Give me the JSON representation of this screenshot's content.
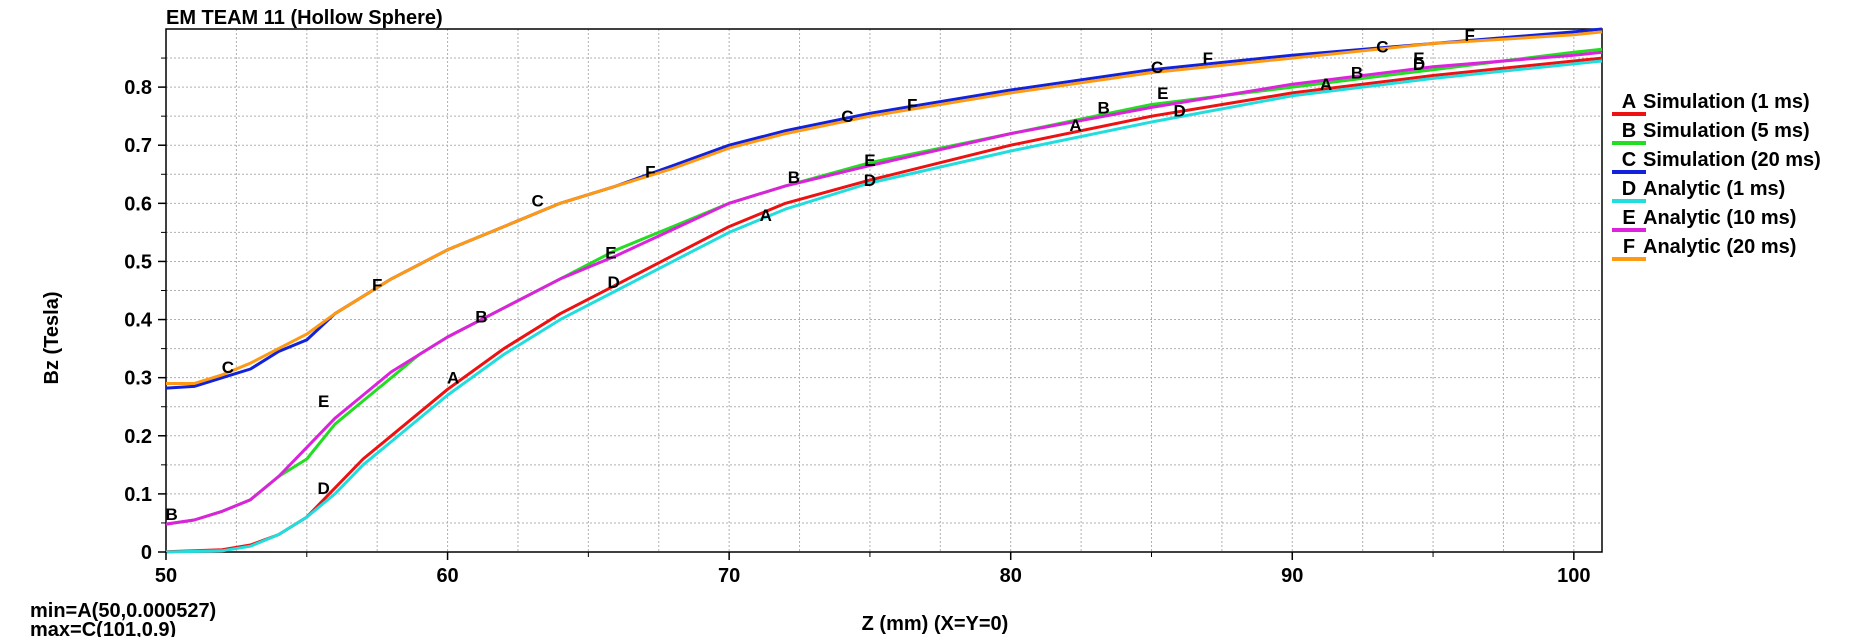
{
  "chart_data": {
    "type": "line",
    "title": "EM TEAM 11 (Hollow Sphere)",
    "xlabel": "Z (mm) (X=Y=0)",
    "ylabel": "Bz (Tesla)",
    "xlim": [
      50,
      101
    ],
    "ylim": [
      0,
      0.9
    ],
    "xticks": [
      50,
      60,
      70,
      80,
      90,
      100
    ],
    "yticks": [
      0,
      0.1,
      0.2,
      0.3,
      0.4,
      0.5,
      0.6,
      0.7,
      0.8
    ],
    "grid": true,
    "legend_position": "right",
    "min_label": "min=A(50,0.000527)",
    "max_label": "max=C(101,0.9)",
    "series": [
      {
        "name": "Simulation (1 ms)",
        "marker": "A",
        "color": "#ee1111",
        "x": [
          50,
          52,
          53,
          54,
          55,
          56,
          57,
          58,
          60,
          62,
          64,
          66,
          68,
          70,
          72,
          75,
          80,
          85,
          90,
          95,
          100,
          101
        ],
        "y": [
          0.0005,
          0.004,
          0.012,
          0.03,
          0.06,
          0.11,
          0.16,
          0.2,
          0.28,
          0.35,
          0.41,
          0.46,
          0.51,
          0.56,
          0.6,
          0.64,
          0.7,
          0.75,
          0.79,
          0.82,
          0.845,
          0.85
        ],
        "markers": [
          [
            60.2,
            0.3
          ],
          [
            71.3,
            0.58
          ],
          [
            82.3,
            0.735
          ],
          [
            91.2,
            0.805
          ]
        ]
      },
      {
        "name": "Simulation (5 ms)",
        "marker": "B",
        "color": "#22dd22",
        "x": [
          50,
          51,
          52,
          53,
          54,
          55,
          56,
          57,
          58,
          59,
          60,
          62,
          64,
          66,
          68,
          70,
          72,
          75,
          80,
          85,
          90,
          95,
          100,
          101
        ],
        "y": [
          0.048,
          0.055,
          0.07,
          0.09,
          0.13,
          0.16,
          0.22,
          0.26,
          0.3,
          0.34,
          0.37,
          0.42,
          0.47,
          0.52,
          0.56,
          0.6,
          0.63,
          0.67,
          0.72,
          0.77,
          0.8,
          0.83,
          0.86,
          0.865
        ],
        "markers": [
          [
            50.2,
            0.065
          ],
          [
            61.2,
            0.405
          ],
          [
            72.3,
            0.645
          ],
          [
            83.3,
            0.765
          ],
          [
            92.3,
            0.825
          ]
        ]
      },
      {
        "name": "Simulation (20 ms)",
        "marker": "C",
        "color": "#1122dd",
        "x": [
          50,
          51,
          52,
          53,
          54,
          55,
          56,
          57,
          58,
          60,
          62,
          64,
          66,
          68,
          70,
          72,
          75,
          80,
          85,
          90,
          95,
          100,
          101
        ],
        "y": [
          0.282,
          0.285,
          0.3,
          0.315,
          0.345,
          0.365,
          0.41,
          0.44,
          0.47,
          0.52,
          0.56,
          0.6,
          0.63,
          0.665,
          0.7,
          0.725,
          0.755,
          0.795,
          0.83,
          0.855,
          0.875,
          0.895,
          0.9
        ],
        "markers": [
          [
            52.2,
            0.318
          ],
          [
            63.2,
            0.605
          ],
          [
            74.2,
            0.75
          ],
          [
            85.2,
            0.835
          ],
          [
            93.2,
            0.87
          ]
        ]
      },
      {
        "name": "Analytic (1 ms)",
        "marker": "D",
        "color": "#22dddd",
        "x": [
          50,
          52,
          53,
          54,
          55,
          56,
          57,
          58,
          60,
          62,
          64,
          66,
          68,
          70,
          72,
          75,
          80,
          85,
          90,
          95,
          100,
          101
        ],
        "y": [
          0,
          0.002,
          0.01,
          0.03,
          0.06,
          0.1,
          0.15,
          0.19,
          0.27,
          0.34,
          0.4,
          0.45,
          0.5,
          0.55,
          0.59,
          0.635,
          0.69,
          0.74,
          0.785,
          0.815,
          0.84,
          0.845
        ],
        "markers": [
          [
            55.6,
            0.11
          ],
          [
            65.9,
            0.465
          ],
          [
            75,
            0.64
          ],
          [
            86,
            0.76
          ],
          [
            94.5,
            0.84
          ]
        ]
      },
      {
        "name": "Analytic (10 ms)",
        "marker": "E",
        "color": "#dd22dd",
        "x": [
          50,
          51,
          52,
          53,
          54,
          55,
          56,
          57,
          58,
          60,
          62,
          64,
          66,
          68,
          70,
          72,
          75,
          80,
          85,
          90,
          95,
          100,
          101
        ],
        "y": [
          0.048,
          0.055,
          0.07,
          0.09,
          0.13,
          0.18,
          0.23,
          0.27,
          0.31,
          0.37,
          0.42,
          0.47,
          0.51,
          0.555,
          0.6,
          0.63,
          0.665,
          0.72,
          0.765,
          0.805,
          0.835,
          0.855,
          0.86
        ],
        "markers": [
          [
            55.6,
            0.26
          ],
          [
            65.8,
            0.515
          ],
          [
            75,
            0.675
          ],
          [
            85.4,
            0.79
          ],
          [
            94.5,
            0.85
          ]
        ]
      },
      {
        "name": "Analytic (20 ms)",
        "marker": "F",
        "color": "#ff9911",
        "x": [
          50,
          51,
          52,
          53,
          54,
          55,
          56,
          57,
          58,
          60,
          62,
          64,
          66,
          68,
          70,
          72,
          75,
          80,
          85,
          90,
          95,
          100,
          101
        ],
        "y": [
          0.29,
          0.29,
          0.305,
          0.325,
          0.35,
          0.375,
          0.41,
          0.44,
          0.47,
          0.52,
          0.56,
          0.6,
          0.63,
          0.66,
          0.695,
          0.72,
          0.75,
          0.79,
          0.825,
          0.85,
          0.875,
          0.89,
          0.895
        ],
        "markers": [
          [
            57.5,
            0.46
          ],
          [
            67.2,
            0.655
          ],
          [
            76.5,
            0.77
          ],
          [
            87,
            0.85
          ],
          [
            96.3,
            0.89
          ]
        ]
      }
    ]
  }
}
